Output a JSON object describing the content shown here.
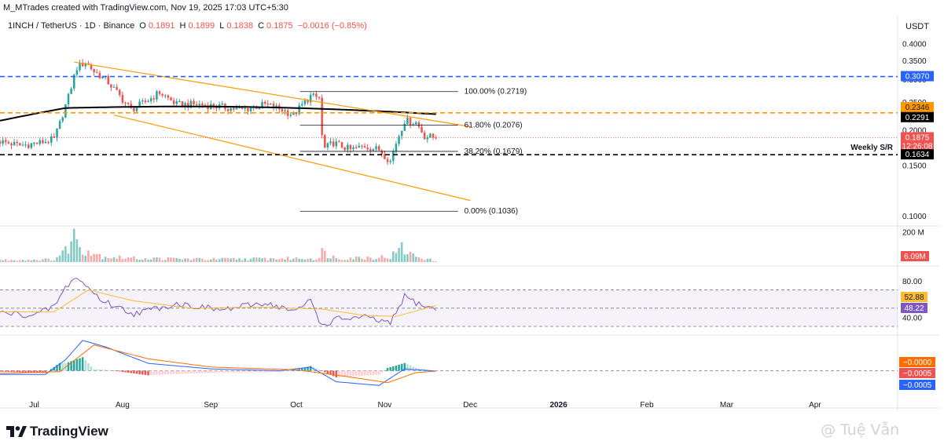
{
  "header": {
    "creator_line": "M_MTrades created with TradingView.com, Nov 19, 2025 17:03 UTC+5:30",
    "symbol": "1INCH / TetherUS · 1D · Binance",
    "ohlc": [
      {
        "k": "O",
        "v": "0.1891"
      },
      {
        "k": "H",
        "v": "0.1899"
      },
      {
        "k": "L",
        "v": "0.1838"
      },
      {
        "k": "C",
        "v": "0.1875"
      },
      {
        "k": "",
        "v": "−0.0016 (−0.85%)"
      }
    ]
  },
  "currency": "USDT",
  "footer": {
    "logo_text": "TradingView",
    "watermark": "@ Tuệ Vẫn"
  },
  "colors": {
    "up": "#26a69a",
    "down": "#ef5350",
    "channel": "#ff9800",
    "sma": "#000000",
    "blue_level": "#2962ff",
    "orange_level": "#ff9800",
    "rsi": "#7e57c2",
    "rsi_ma": "#fdbb2d",
    "macd": "#2962ff",
    "signal": "#ff6d00"
  },
  "chart_data": [
    {
      "type": "candlestick",
      "title": "1INCH / TetherUS · 1D · Binance",
      "y_scale": "log",
      "ylim": [
        0.092,
        0.42
      ],
      "y_ticks": [
        "0.4000",
        "0.3500",
        "0.3000",
        "0.2500",
        "0.2000",
        "0.1500",
        "0.1000"
      ],
      "x_ticks": [
        "Jul",
        "Aug",
        "Sep",
        "Oct",
        "Nov",
        "Dec",
        "2026",
        "Feb",
        "Mar",
        "Apr"
      ],
      "x_range": [
        "2025-06-19",
        "2026-04-30"
      ],
      "candle_range": [
        "2025-06-19",
        "2025-11-19"
      ],
      "close_path": [
        [
          "2025-06-19",
          0.182
        ],
        [
          "2025-06-26",
          0.176
        ],
        [
          "2025-07-03",
          0.18
        ],
        [
          "2025-07-08",
          0.185
        ],
        [
          "2025-07-10",
          0.21
        ],
        [
          "2025-07-13",
          0.26
        ],
        [
          "2025-07-16",
          0.33
        ],
        [
          "2025-07-19",
          0.345
        ],
        [
          "2025-07-22",
          0.32
        ],
        [
          "2025-07-26",
          0.3
        ],
        [
          "2025-08-01",
          0.255
        ],
        [
          "2025-08-04",
          0.235
        ],
        [
          "2025-08-09",
          0.25
        ],
        [
          "2025-08-14",
          0.27
        ],
        [
          "2025-08-20",
          0.245
        ],
        [
          "2025-08-28",
          0.245
        ],
        [
          "2025-09-05",
          0.24
        ],
        [
          "2025-09-12",
          0.235
        ],
        [
          "2025-09-20",
          0.245
        ],
        [
          "2025-09-26",
          0.235
        ],
        [
          "2025-09-30",
          0.225
        ],
        [
          "2025-10-06",
          0.262
        ],
        [
          "2025-10-09",
          0.258
        ],
        [
          "2025-10-10",
          0.19
        ],
        [
          "2025-10-11",
          0.172
        ],
        [
          "2025-10-14",
          0.18
        ],
        [
          "2025-10-20",
          0.17
        ],
        [
          "2025-10-25",
          0.175
        ],
        [
          "2025-10-30",
          0.17
        ],
        [
          "2025-11-03",
          0.155
        ],
        [
          "2025-11-05",
          0.18
        ],
        [
          "2025-11-08",
          0.215
        ],
        [
          "2025-11-12",
          0.212
        ],
        [
          "2025-11-15",
          0.19
        ],
        [
          "2025-11-19",
          0.1875
        ]
      ],
      "annotations": {
        "sma200_label": "",
        "descending_channel": {
          "upper": [
            [
              "2025-07-15",
              0.345
            ],
            [
              "2025-12-01",
              0.205
            ]
          ],
          "lower": [
            [
              "2025-07-29",
              0.225
            ],
            [
              "2025-12-01",
              0.113
            ]
          ]
        },
        "fib_levels": [
          {
            "label": "100.00% (0.2719)",
            "value": 0.2719
          },
          {
            "label": "61.80% (0.2076)",
            "value": 0.2076
          },
          {
            "label": "38.20% (0.1679)",
            "value": 0.1679
          },
          {
            "label": "0.00% (0.1036)",
            "value": 0.1036
          }
        ],
        "fib_x_range": [
          "2025-10-10",
          "2025-11-19"
        ],
        "horizontal_levels": [
          {
            "value": 0.307,
            "label": "0.3070",
            "color": "#2962ff",
            "style": "dashed"
          },
          {
            "value": 0.2291,
            "label": "0.2291",
            "color": "#ff9800",
            "style": "dashed"
          },
          {
            "value": 0.1634,
            "label": "0.1634",
            "color": "#000000",
            "style": "dashed",
            "note": "Weekly S/R"
          }
        ],
        "price_tags": [
          {
            "value": 0.2346,
            "label": "0.2346",
            "bg": "#ff9800",
            "fg": "#131722"
          },
          {
            "value": 0.2291,
            "label": "0.2291",
            "bg": "#000000",
            "fg": "#ffffff"
          },
          {
            "value": 0.1875,
            "label": "0.1875",
            "label2": "12:26:08",
            "bg": "#ef5350",
            "fg": "#ffffff"
          },
          {
            "value": 0.1634,
            "label": "0.1634",
            "bg": "#000000",
            "fg": "#ffffff"
          }
        ]
      }
    },
    {
      "type": "bar",
      "title": "Volume",
      "y_ticks": [
        "200 M"
      ],
      "last_value": "6.09M",
      "ylim_millions": [
        0,
        240
      ],
      "volume_path_millions": [
        [
          "2025-06-19",
          15
        ],
        [
          "2025-07-08",
          20
        ],
        [
          "2025-07-12",
          90
        ],
        [
          "2025-07-15",
          205
        ],
        [
          "2025-07-18",
          110
        ],
        [
          "2025-07-25",
          45
        ],
        [
          "2025-08-05",
          30
        ],
        [
          "2025-09-01",
          22
        ],
        [
          "2025-10-09",
          30
        ],
        [
          "2025-10-10",
          80
        ],
        [
          "2025-10-15",
          30
        ],
        [
          "2025-11-03",
          40
        ],
        [
          "2025-11-07",
          110
        ],
        [
          "2025-11-10",
          60
        ],
        [
          "2025-11-19",
          6.09
        ]
      ]
    },
    {
      "type": "line",
      "title": "RSI",
      "ylim": [
        24,
        92
      ],
      "y_ticks": [
        "80.00",
        "40.00"
      ],
      "bands": [
        70,
        50,
        30
      ],
      "series": [
        {
          "name": "",
          "color": "#7e57c2",
          "points": [
            [
              "2025-06-19",
              45
            ],
            [
              "2025-07-01",
              42
            ],
            [
              "2025-07-08",
              52
            ],
            [
              "2025-07-12",
              72
            ],
            [
              "2025-07-15",
              84
            ],
            [
              "2025-07-18",
              78
            ],
            [
              "2025-07-25",
              58
            ],
            [
              "2025-08-05",
              44
            ],
            [
              "2025-08-20",
              55
            ],
            [
              "2025-09-05",
              48
            ],
            [
              "2025-09-20",
              56
            ],
            [
              "2025-10-01",
              46
            ],
            [
              "2025-10-06",
              60
            ],
            [
              "2025-10-10",
              30
            ],
            [
              "2025-10-15",
              38
            ],
            [
              "2025-10-25",
              40
            ],
            [
              "2025-11-03",
              33
            ],
            [
              "2025-11-08",
              63
            ],
            [
              "2025-11-12",
              56
            ],
            [
              "2025-11-19",
              48.22
            ]
          ],
          "last_label": "48.22"
        },
        {
          "name": "",
          "color": "#fdbb2d",
          "points": [
            [
              "2025-06-19",
              46
            ],
            [
              "2025-07-08",
              46
            ],
            [
              "2025-07-20",
              70
            ],
            [
              "2025-08-05",
              58
            ],
            [
              "2025-08-25",
              50
            ],
            [
              "2025-09-20",
              51
            ],
            [
              "2025-10-10",
              49
            ],
            [
              "2025-10-25",
              42
            ],
            [
              "2025-11-05",
              41
            ],
            [
              "2025-11-19",
              52.88
            ]
          ],
          "last_label": "52.88"
        }
      ]
    },
    {
      "type": "line",
      "title": "MACD",
      "ylim": [
        -0.032,
        0.038
      ],
      "y_ticks": [],
      "series": [
        {
          "name": "",
          "color": "#2962ff",
          "points": [
            [
              "2025-06-19",
              -0.004
            ],
            [
              "2025-07-05",
              -0.004
            ],
            [
              "2025-07-12",
              0.012
            ],
            [
              "2025-07-18",
              0.033
            ],
            [
              "2025-07-26",
              0.026
            ],
            [
              "2025-08-10",
              0.008
            ],
            [
              "2025-09-01",
              0.002
            ],
            [
              "2025-09-25",
              0.0
            ],
            [
              "2025-10-06",
              0.004
            ],
            [
              "2025-10-15",
              -0.012
            ],
            [
              "2025-10-30",
              -0.016
            ],
            [
              "2025-11-08",
              0.002
            ],
            [
              "2025-11-19",
              -0.0005
            ]
          ],
          "last_label": "−0.0005"
        },
        {
          "name": "",
          "color": "#ff6d00",
          "points": [
            [
              "2025-06-19",
              -0.003
            ],
            [
              "2025-07-10",
              -0.001
            ],
            [
              "2025-07-22",
              0.028
            ],
            [
              "2025-08-10",
              0.013
            ],
            [
              "2025-09-01",
              0.004
            ],
            [
              "2025-10-01",
              0.001
            ],
            [
              "2025-10-18",
              -0.006
            ],
            [
              "2025-11-02",
              -0.013
            ],
            [
              "2025-11-12",
              -0.002
            ],
            [
              "2025-11-19",
              -0.0005
            ]
          ],
          "last_label": "−0.0005"
        }
      ],
      "histogram_label": "−0.0000"
    }
  ]
}
